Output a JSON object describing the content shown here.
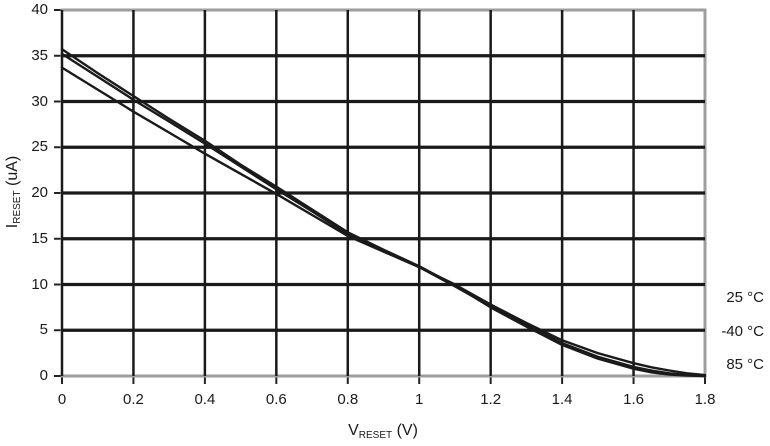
{
  "axes": {
    "x": {
      "label_pre": "V",
      "label_sub": "RESET",
      "label_post": " (V)",
      "ticks": [
        "0",
        "0.2",
        "0.4",
        "0.6",
        "0.8",
        "1",
        "1.2",
        "1.4",
        "1.6",
        "1.8"
      ]
    },
    "y": {
      "label_pre": "I",
      "label_sub": "RESET",
      "label_post": " (uA)",
      "ticks": [
        "0",
        "5",
        "10",
        "15",
        "20",
        "25",
        "30",
        "35",
        "40"
      ]
    }
  },
  "legend": {
    "items": [
      {
        "label": "25 °C"
      },
      {
        "label": "-40 °C"
      },
      {
        "label": "85 °C"
      }
    ]
  },
  "colors": {
    "background": "#ffffff",
    "gridline": "#1a1a1a",
    "plot_border": "#9e9e9e",
    "curve": "#1a1a1a",
    "text": "#1a1a1a",
    "tick": "#222222"
  },
  "chart_data": {
    "type": "line",
    "title": "",
    "xlabel": "V_RESET (V)",
    "ylabel": "I_RESET (uA)",
    "xlim": [
      0,
      1.8
    ],
    "ylim": [
      0,
      40
    ],
    "x_ticks": [
      0,
      0.2,
      0.4,
      0.6,
      0.8,
      1,
      1.2,
      1.4,
      1.6,
      1.8
    ],
    "y_ticks": [
      0,
      5,
      10,
      15,
      20,
      25,
      30,
      35,
      40
    ],
    "grid": true,
    "legend_position": "right-outside",
    "x": [
      0,
      0.1,
      0.2,
      0.3,
      0.4,
      0.5,
      0.6,
      0.7,
      0.8,
      0.9,
      1.0,
      1.1,
      1.2,
      1.3,
      1.4,
      1.5,
      1.6,
      1.65,
      1.7,
      1.75,
      1.8
    ],
    "series": [
      {
        "name": "25 °C",
        "values": [
          35.2,
          32.7,
          30.2,
          27.8,
          25.4,
          22.9,
          20.4,
          18.0,
          15.5,
          13.7,
          11.9,
          9.8,
          7.6,
          5.6,
          3.6,
          2.1,
          1.0,
          0.6,
          0.3,
          0.1,
          0.0
        ]
      },
      {
        "name": "-40 °C",
        "values": [
          35.7,
          33.1,
          30.6,
          28.1,
          25.7,
          23.1,
          20.7,
          18.2,
          15.7,
          13.8,
          12.0,
          9.9,
          7.5,
          5.4,
          3.4,
          1.9,
          0.8,
          0.4,
          0.15,
          0.05,
          0.0
        ]
      },
      {
        "name": "85 °C",
        "values": [
          33.7,
          31.3,
          28.9,
          26.6,
          24.3,
          22.1,
          19.9,
          17.6,
          15.3,
          13.6,
          11.9,
          10.0,
          7.8,
          5.8,
          3.9,
          2.5,
          1.4,
          0.95,
          0.6,
          0.3,
          0.1
        ]
      }
    ]
  }
}
